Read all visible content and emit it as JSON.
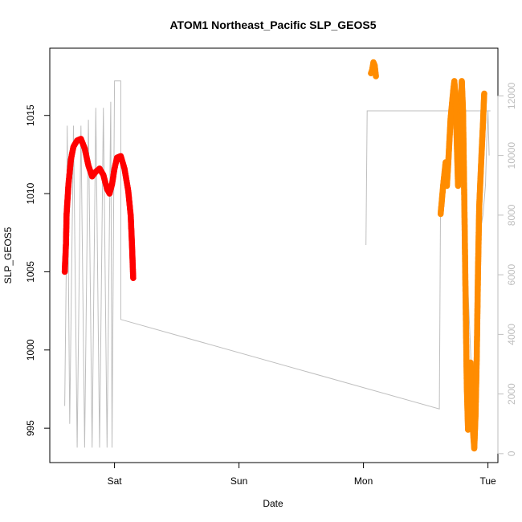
{
  "chart_data": {
    "type": "scatter",
    "title": "ATOM1 Northeast_Pacific SLP_GEOS5",
    "xlabel": "Date",
    "ylabel": "SLP_GEOS5",
    "x_ticks": [
      {
        "label": "Sat",
        "x": 0.0
      },
      {
        "label": "Sun",
        "x": 1.0
      },
      {
        "label": "Mon",
        "x": 2.0
      },
      {
        "label": "Tue",
        "x": 3.0
      }
    ],
    "xlim": [
      -0.52,
      3.08
    ],
    "y_left": {
      "ticks": [
        995,
        1000,
        1005,
        1010,
        1015
      ],
      "ylim": [
        992.8,
        1019.3
      ]
    },
    "y_right": {
      "ticks": [
        0,
        2000,
        4000,
        6000,
        8000,
        10000,
        12000
      ],
      "ylim": [
        -300,
        13600
      ],
      "color": "#bebebe"
    },
    "colors": {
      "red_series": "#ff0000",
      "orange_series": "#ff8c00",
      "gray_line": "#bebebe"
    },
    "series": [
      {
        "color": "red",
        "points": [
          [
            -0.4,
            1005.0
          ],
          [
            -0.39,
            1006.8
          ],
          [
            -0.385,
            1008.7
          ],
          [
            -0.37,
            1010.6
          ],
          [
            -0.35,
            1012.2
          ],
          [
            -0.33,
            1013.0
          ],
          [
            -0.3,
            1013.4
          ],
          [
            -0.27,
            1013.5
          ],
          [
            -0.24,
            1012.9
          ],
          [
            -0.21,
            1011.8
          ],
          [
            -0.18,
            1011.1
          ],
          [
            -0.15,
            1011.4
          ],
          [
            -0.12,
            1011.6
          ],
          [
            -0.09,
            1011.2
          ],
          [
            -0.06,
            1010.3
          ],
          [
            -0.04,
            1010.0
          ],
          [
            -0.02,
            1010.6
          ],
          [
            0.0,
            1011.6
          ],
          [
            0.02,
            1012.3
          ],
          [
            0.05,
            1012.4
          ],
          [
            0.08,
            1011.6
          ],
          [
            0.11,
            1010.2
          ],
          [
            0.13,
            1008.6
          ],
          [
            0.14,
            1006.8
          ],
          [
            0.15,
            1004.6
          ]
        ]
      },
      {
        "color": "orange",
        "points": [
          [
            2.06,
            1017.7
          ],
          [
            2.07,
            1017.9
          ],
          [
            2.08,
            1018.4
          ],
          [
            2.09,
            1018.2
          ],
          [
            2.1,
            1017.5
          ],
          [
            2.62,
            1008.7
          ],
          [
            2.64,
            1010.5
          ],
          [
            2.66,
            1012.0
          ],
          [
            2.67,
            1010.5
          ],
          [
            2.68,
            1011.8
          ],
          [
            2.7,
            1014.8
          ],
          [
            2.72,
            1016.5
          ],
          [
            2.73,
            1017.2
          ],
          [
            2.74,
            1016.0
          ],
          [
            2.75,
            1013.2
          ],
          [
            2.76,
            1010.5
          ],
          [
            2.77,
            1011.8
          ],
          [
            2.78,
            1015.6
          ],
          [
            2.79,
            1017.2
          ],
          [
            2.8,
            1015.2
          ],
          [
            2.81,
            1009.6
          ],
          [
            2.82,
            1003.5
          ],
          [
            2.83,
            997.8
          ],
          [
            2.84,
            994.9
          ],
          [
            2.85,
            995.6
          ],
          [
            2.86,
            999.2
          ],
          [
            2.87,
            997.6
          ],
          [
            2.88,
            994.8
          ],
          [
            2.89,
            993.7
          ],
          [
            2.9,
            995.8
          ],
          [
            2.91,
            999.5
          ],
          [
            2.92,
            1005.0
          ],
          [
            2.93,
            1009.2
          ],
          [
            2.95,
            1012.8
          ],
          [
            2.96,
            1014.5
          ],
          [
            2.97,
            1016.4
          ]
        ]
      }
    ],
    "gray_line_right_axis": [
      [
        -0.4,
        1600
      ],
      [
        -0.385,
        7200
      ],
      [
        -0.38,
        11000
      ],
      [
        -0.36,
        1000
      ],
      [
        -0.33,
        11000
      ],
      [
        -0.3,
        200
      ],
      [
        -0.27,
        11000
      ],
      [
        -0.24,
        200
      ],
      [
        -0.21,
        11200
      ],
      [
        -0.18,
        200
      ],
      [
        -0.15,
        11600
      ],
      [
        -0.12,
        200
      ],
      [
        -0.09,
        11600
      ],
      [
        -0.06,
        200
      ],
      [
        -0.03,
        11800
      ],
      [
        -0.02,
        200
      ],
      [
        0.0,
        12500
      ],
      [
        0.05,
        12500
      ],
      [
        0.05,
        4500
      ],
      [
        2.61,
        1500
      ],
      [
        2.62,
        9000
      ],
      [
        2.64,
        9500
      ],
      [
        2.66,
        9000
      ],
      [
        2.68,
        10000
      ],
      [
        2.7,
        10500
      ],
      [
        2.72,
        11500
      ],
      [
        2.74,
        11000
      ],
      [
        2.76,
        9500
      ],
      [
        2.78,
        10000
      ],
      [
        2.8,
        9500
      ],
      [
        2.82,
        7000
      ],
      [
        2.84,
        5500
      ],
      [
        2.86,
        3500
      ],
      [
        2.88,
        1500
      ],
      [
        2.9,
        5000
      ],
      [
        2.92,
        6500
      ],
      [
        2.94,
        7500
      ],
      [
        2.96,
        8000
      ],
      [
        2.98,
        9000
      ],
      [
        2.99,
        10500
      ],
      [
        3.0,
        11500
      ],
      [
        3.01,
        10000
      ]
    ],
    "gray_line_right_axis_2": [
      [
        2.02,
        7000
      ],
      [
        2.03,
        11500
      ],
      [
        3.02,
        11500
      ]
    ]
  }
}
